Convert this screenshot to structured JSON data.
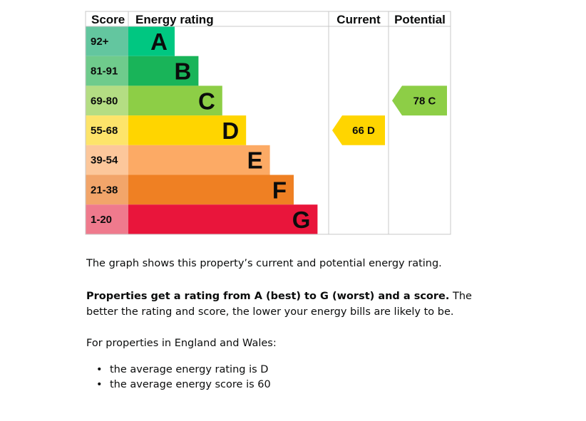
{
  "chart_data": {
    "type": "table",
    "headers": {
      "score": "Score",
      "rating": "Energy rating",
      "current": "Current",
      "potential": "Potential"
    },
    "bands": [
      {
        "range": "92+",
        "letter": "A",
        "bar_color": "#00c781",
        "score_color": "#63c69f"
      },
      {
        "range": "81-91",
        "letter": "B",
        "bar_color": "#19b459",
        "score_color": "#6fcb8c"
      },
      {
        "range": "69-80",
        "letter": "C",
        "bar_color": "#8dce46",
        "score_color": "#b4dd83"
      },
      {
        "range": "55-68",
        "letter": "D",
        "bar_color": "#ffd500",
        "score_color": "#fde46a"
      },
      {
        "range": "39-54",
        "letter": "E",
        "bar_color": "#fcaa65",
        "score_color": "#fcc79b"
      },
      {
        "range": "21-38",
        "letter": "F",
        "bar_color": "#ef8023",
        "score_color": "#f2a56a"
      },
      {
        "range": "1-20",
        "letter": "G",
        "bar_color": "#e9153b",
        "score_color": "#ef7a8d"
      }
    ],
    "current": {
      "score": 66,
      "letter": "D",
      "label": "66  D",
      "color": "#ffd500"
    },
    "potential": {
      "score": 78,
      "letter": "C",
      "label": "78  C",
      "color": "#8dce46"
    }
  },
  "text": {
    "p1": "The graph shows this property’s current and potential energy rating.",
    "p2_bold": "Properties get a rating from A (best) to G (worst) and a score.",
    "p2_rest": " The better the rating and score, the lower your energy bills are likely to be.",
    "p3": "For properties in England and Wales:",
    "bullets": [
      "the average energy rating is D",
      "the average energy score is 60"
    ]
  }
}
